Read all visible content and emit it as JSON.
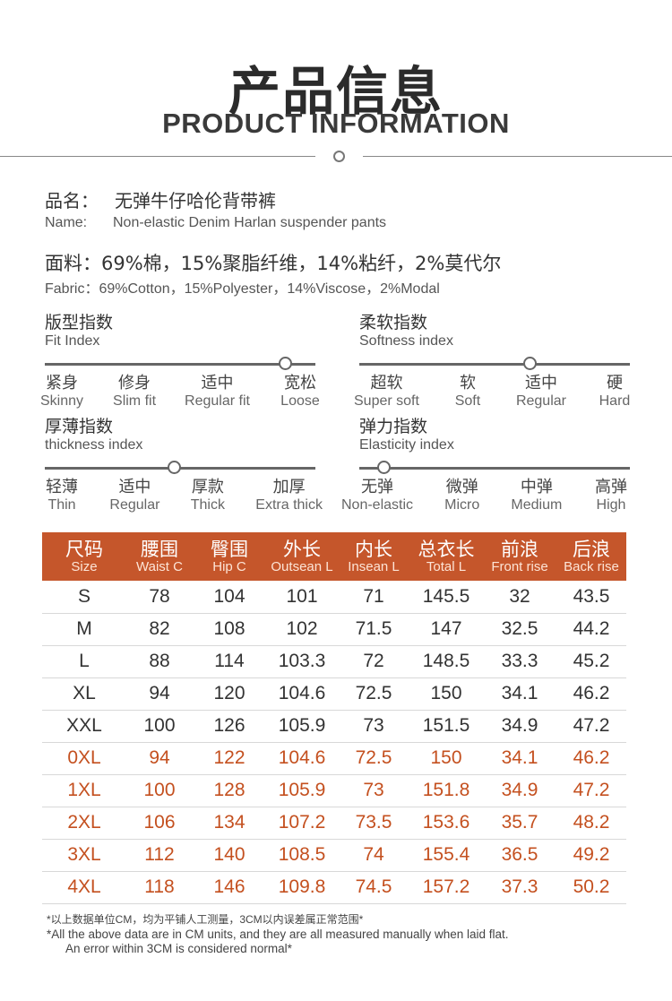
{
  "header": {
    "title_cn": "产品信息",
    "title_en": "PRODUCT INFORMATION"
  },
  "product": {
    "name_label_cn": "品名：",
    "name_value_cn": "无弹牛仔哈伦背带裤",
    "name_label_en": "Name:",
    "name_value_en": "Non-elastic Denim Harlan suspender pants",
    "fabric_cn": "面料：69%棉，15%聚脂纤维，14%粘纤，2%莫代尔",
    "fabric_en": "Fabric：69%Cotton，15%Polyester，14%Viscose，2%Modal"
  },
  "indices": {
    "fit": {
      "title_cn": "版型指数",
      "title_en": "Fit Index",
      "selected_fraction": 0.89,
      "levels": [
        {
          "cn": "紧身",
          "en": "Skinny"
        },
        {
          "cn": "修身",
          "en": "Slim fit"
        },
        {
          "cn": "适中",
          "en": "Regular fit"
        },
        {
          "cn": "宽松",
          "en": "Loose"
        }
      ]
    },
    "softness": {
      "title_cn": "柔软指数",
      "title_en": "Softness index",
      "selected_fraction": 0.63,
      "levels": [
        {
          "cn": "超软",
          "en": "Super soft"
        },
        {
          "cn": "软",
          "en": "Soft"
        },
        {
          "cn": "适中",
          "en": "Regular"
        },
        {
          "cn": "硬",
          "en": "Hard"
        }
      ]
    },
    "thickness": {
      "title_cn": "厚薄指数",
      "title_en": "thickness index",
      "selected_fraction": 0.48,
      "levels": [
        {
          "cn": "轻薄",
          "en": "Thin"
        },
        {
          "cn": "适中",
          "en": "Regular"
        },
        {
          "cn": "厚款",
          "en": "Thick"
        },
        {
          "cn": "加厚",
          "en": "Extra thick"
        }
      ]
    },
    "elasticity": {
      "title_cn": "弹力指数",
      "title_en": "Elasticity index",
      "selected_fraction": 0.09,
      "levels": [
        {
          "cn": "无弹",
          "en": "Non-elastic"
        },
        {
          "cn": "微弹",
          "en": "Micro"
        },
        {
          "cn": "中弹",
          "en": "Medium"
        },
        {
          "cn": "高弹",
          "en": "High"
        }
      ]
    }
  },
  "size_table": {
    "headers": [
      {
        "cn": "尺码",
        "en": "Size"
      },
      {
        "cn": "腰围",
        "en": "Waist C"
      },
      {
        "cn": "臀围",
        "en": "Hip C"
      },
      {
        "cn": "外长",
        "en": "Outsean L"
      },
      {
        "cn": "内长",
        "en": "Insean L"
      },
      {
        "cn": "总衣长",
        "en": "Total L"
      },
      {
        "cn": "前浪",
        "en": "Front rise"
      },
      {
        "cn": "后浪",
        "en": "Back rise"
      }
    ],
    "rows": [
      [
        "S",
        "78",
        "104",
        "101",
        "71",
        "145.5",
        "32",
        "43.5"
      ],
      [
        "M",
        "82",
        "108",
        "102",
        "71.5",
        "147",
        "32.5",
        "44.2"
      ],
      [
        "L",
        "88",
        "114",
        "103.3",
        "72",
        "148.5",
        "33.3",
        "45.2"
      ],
      [
        "XL",
        "94",
        "120",
        "104.6",
        "72.5",
        "150",
        "34.1",
        "46.2"
      ],
      [
        "XXL",
        "100",
        "126",
        "105.9",
        "73",
        "151.5",
        "34.9",
        "47.2"
      ],
      [
        "0XL",
        "94",
        "122",
        "104.6",
        "72.5",
        "150",
        "34.1",
        "46.2"
      ],
      [
        "1XL",
        "100",
        "128",
        "105.9",
        "73",
        "151.8",
        "34.9",
        "47.2"
      ],
      [
        "2XL",
        "106",
        "134",
        "107.2",
        "73.5",
        "153.6",
        "35.7",
        "48.2"
      ],
      [
        "3XL",
        "112",
        "140",
        "108.5",
        "74",
        "155.4",
        "36.5",
        "49.2"
      ],
      [
        "4XL",
        "118",
        "146",
        "109.8",
        "74.5",
        "157.2",
        "37.3",
        "50.2"
      ]
    ],
    "highlight_color": "#c4501f",
    "header_color": "#c5562b"
  },
  "notes": {
    "cn": "*以上数据单位CM，均为平铺人工测量，3CM以内误差属正常范围*",
    "en_line1": "*All the above data are in CM units, and they are all measured manually when laid flat.",
    "en_line2": "An error within 3CM is considered normal*"
  }
}
